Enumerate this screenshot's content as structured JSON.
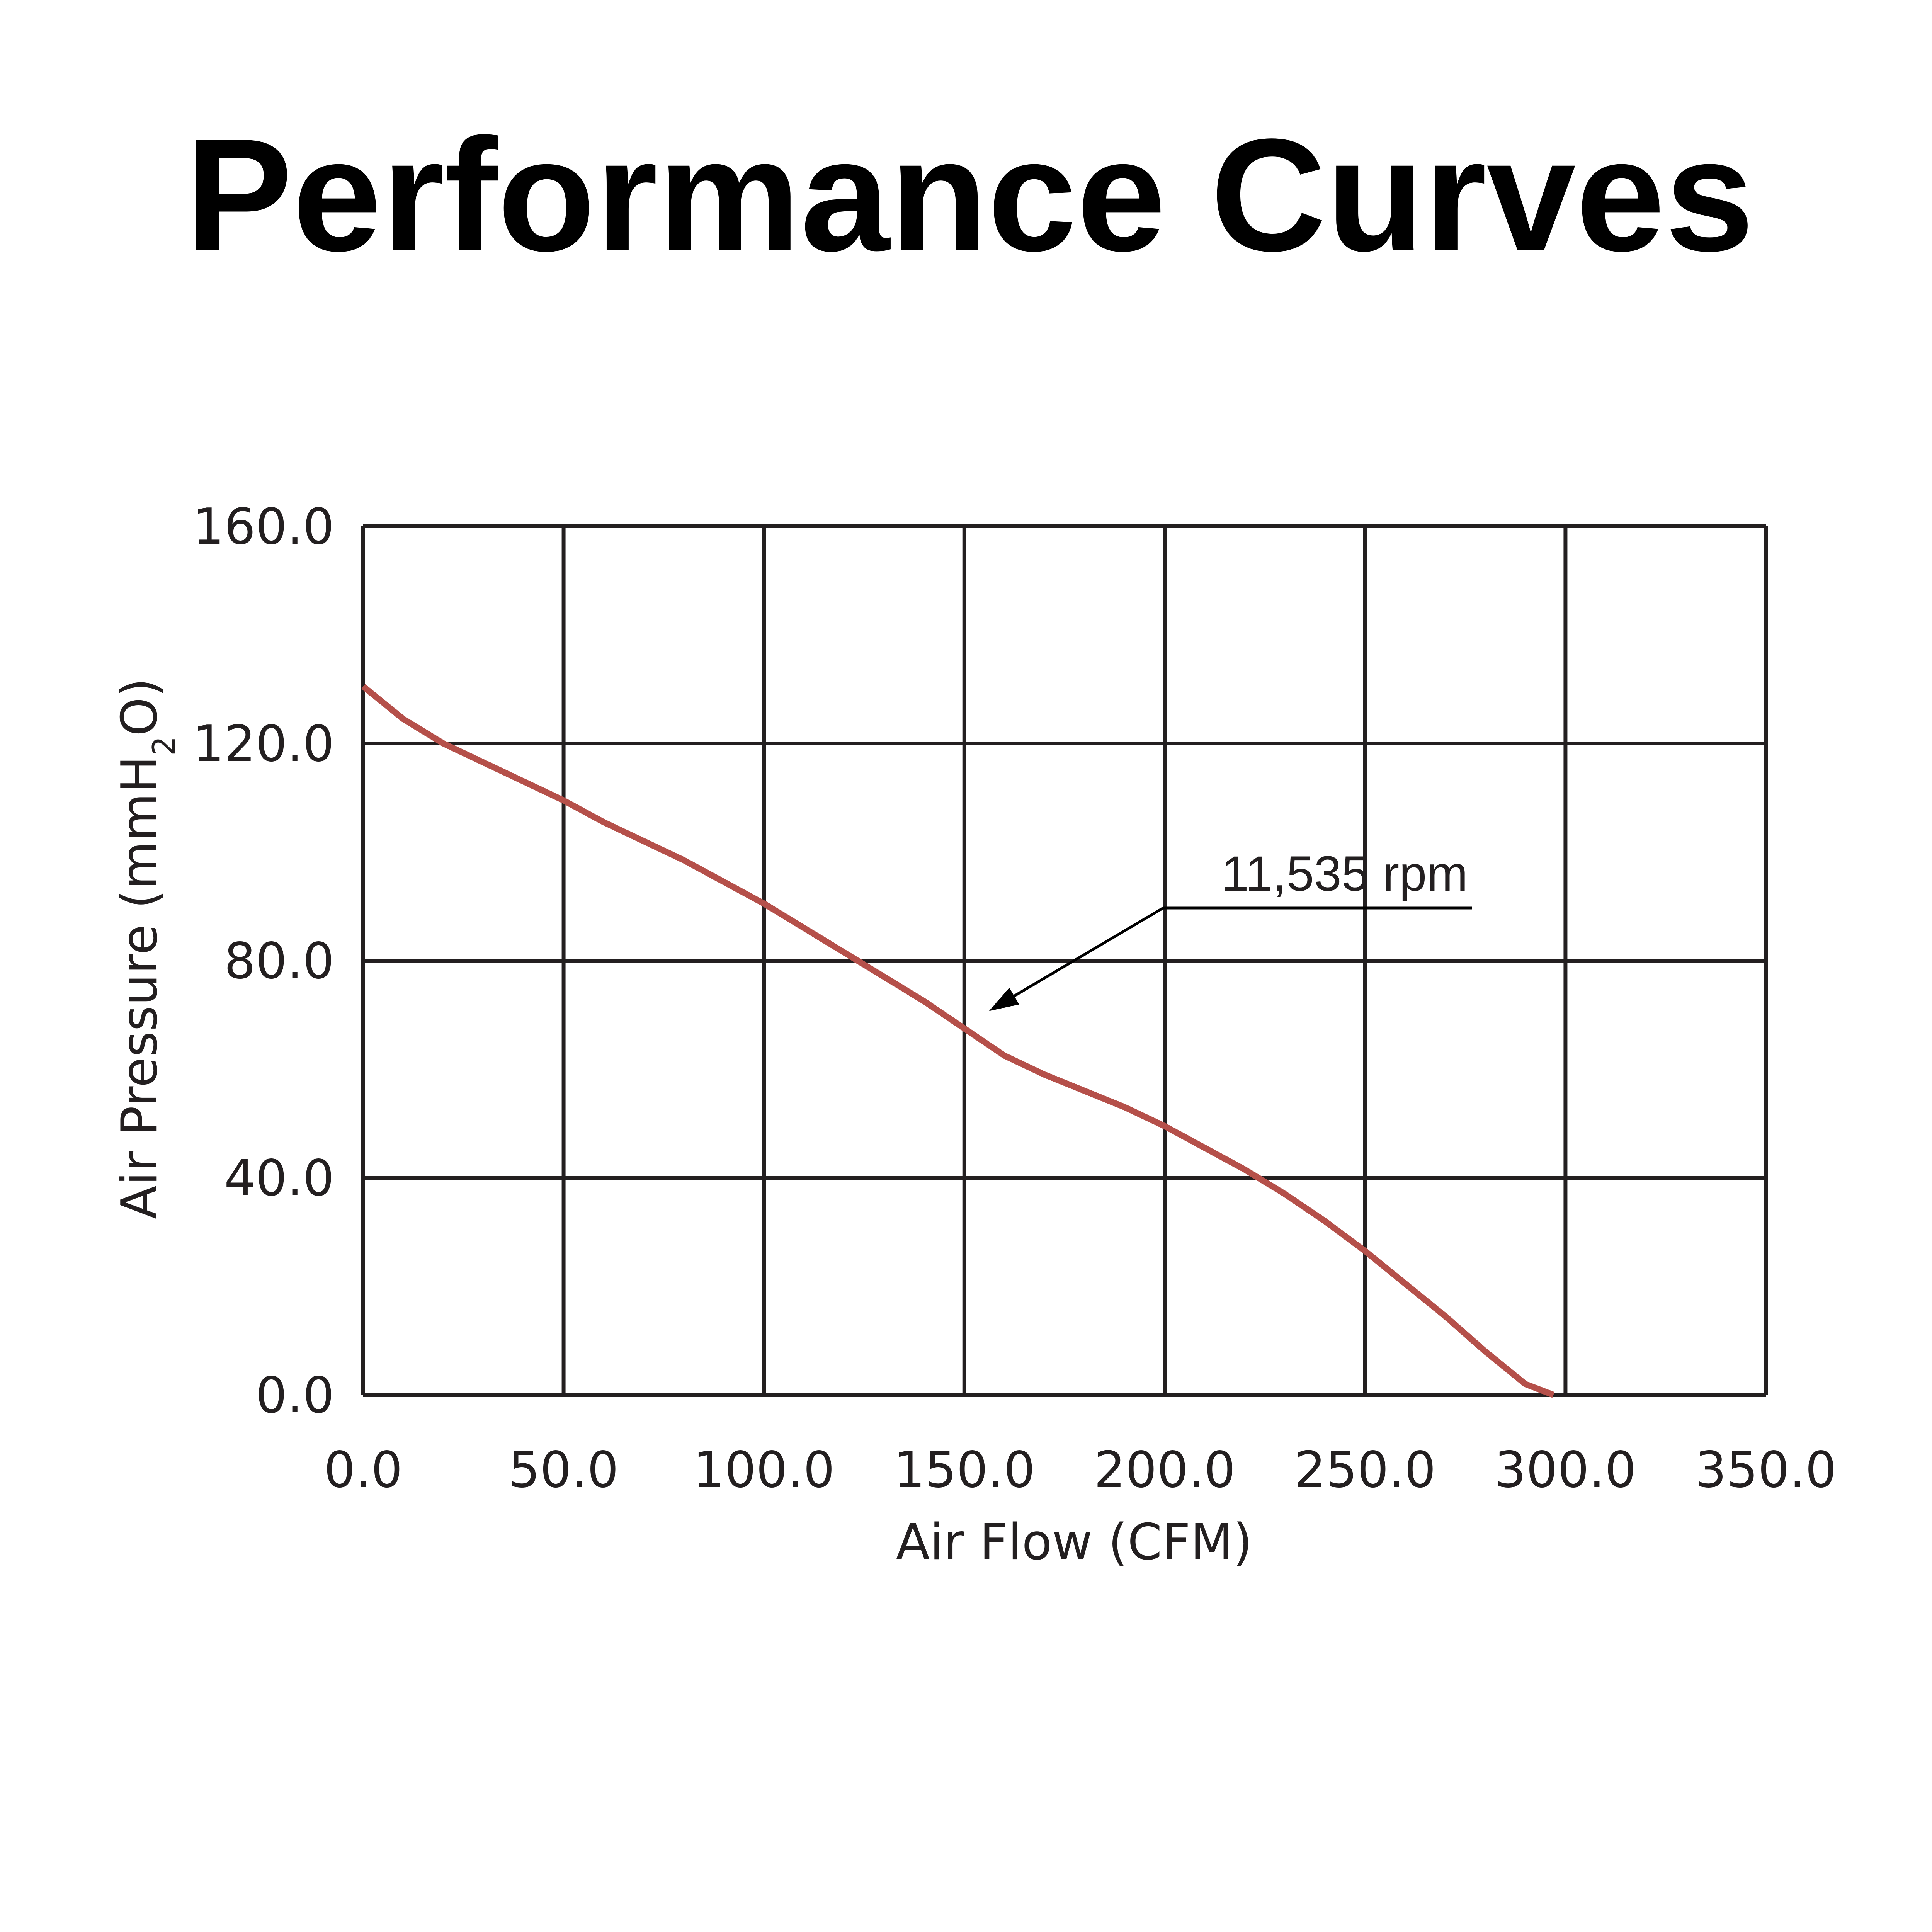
{
  "chart_data": {
    "type": "line",
    "title": "Performance Curves",
    "xlabel": "Air Flow (CFM)",
    "ylabel": {
      "prefix": "Air Pressure (mmH",
      "subscript": "2",
      "suffix": "O)"
    },
    "xlim": [
      0,
      350
    ],
    "ylim": [
      0,
      160
    ],
    "xticks": [
      0,
      50,
      100,
      150,
      200,
      250,
      300,
      350
    ],
    "xtick_labels": [
      "0.0",
      "50.0",
      "100.0",
      "150.0",
      "200.0",
      "250.0",
      "300.0",
      "350.0"
    ],
    "yticks": [
      0,
      40,
      80,
      120,
      160
    ],
    "ytick_labels": [
      "0.0",
      "40.0",
      "80.0",
      "120.0",
      "160.0"
    ],
    "grid": true,
    "series": [
      {
        "color": "#b5504a",
        "x": [
          0,
          10,
          20,
          30,
          40,
          50,
          60,
          70,
          80,
          90,
          100,
          110,
          120,
          130,
          140,
          150,
          160,
          170,
          180,
          190,
          200,
          210,
          220,
          230,
          240,
          250,
          260,
          270,
          280,
          290,
          297
        ],
        "y": [
          130.5,
          124.5,
          120.0,
          116.5,
          113.0,
          109.5,
          105.5,
          102.0,
          98.5,
          94.5,
          90.5,
          86.0,
          81.5,
          77.0,
          72.5,
          67.5,
          62.5,
          59.0,
          56.0,
          53.0,
          49.5,
          45.5,
          41.5,
          37.0,
          32.0,
          26.5,
          20.5,
          14.5,
          8.0,
          2.0,
          0.0
        ]
      }
    ],
    "annotations": [
      {
        "text": "11,535 rpm",
        "x": 155,
        "y": 70
      }
    ]
  },
  "colors": {
    "curve": "#b5504a",
    "grid": "#231f20",
    "text": "#231f20"
  }
}
